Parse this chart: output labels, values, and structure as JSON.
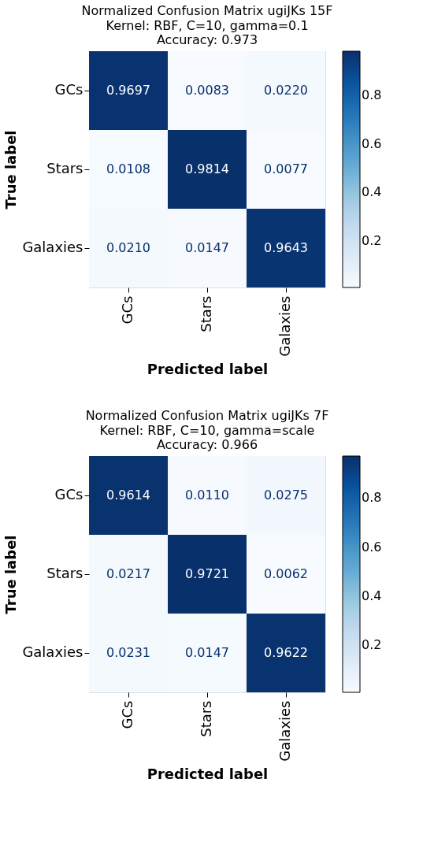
{
  "chart_data": [
    {
      "type": "heatmap",
      "title": "Normalized Confusion Matrix ugiJKs  15F",
      "subtitle": "Kernel: RBF, C=10, gamma=0.1\nAccuracy: 0.973",
      "xlabel": "Predicted label",
      "ylabel": "True label",
      "categories": [
        "GCs",
        "Stars",
        "Galaxies"
      ],
      "y_categories": [
        "GCs",
        "Stars",
        "Galaxies"
      ],
      "cells": [
        [
          0.9697,
          0.0083,
          0.022
        ],
        [
          0.0108,
          0.9814,
          0.0077
        ],
        [
          0.021,
          0.0147,
          0.9643
        ]
      ],
      "cell_labels": [
        [
          "0.9697",
          "0.0083",
          "0.0220"
        ],
        [
          "0.0108",
          "0.9814",
          "0.0077"
        ],
        [
          "0.0210",
          "0.0147",
          "0.9643"
        ]
      ],
      "clim": [
        0.0077,
        0.9814
      ],
      "cticks": [
        0.2,
        0.4,
        0.6,
        0.8
      ]
    },
    {
      "type": "heatmap",
      "title": "Normalized Confusion Matrix ugiJKs  7F",
      "subtitle": "Kernel: RBF, C=10, gamma=scale\nAccuracy: 0.966",
      "xlabel": "Predicted label",
      "ylabel": "True label",
      "categories": [
        "GCs",
        "Stars",
        "Galaxies"
      ],
      "y_categories": [
        "GCs",
        "Stars",
        "Galaxies"
      ],
      "cells": [
        [
          0.9614,
          0.011,
          0.0275
        ],
        [
          0.0217,
          0.9721,
          0.0062
        ],
        [
          0.0231,
          0.0147,
          0.9622
        ]
      ],
      "cell_labels": [
        [
          "0.9614",
          "0.0110",
          "0.0275"
        ],
        [
          "0.0217",
          "0.9721",
          "0.0062"
        ],
        [
          "0.0231",
          "0.0147",
          "0.9622"
        ]
      ],
      "clim": [
        0.0062,
        0.9721
      ],
      "cticks": [
        0.2,
        0.4,
        0.6,
        0.8
      ]
    }
  ]
}
